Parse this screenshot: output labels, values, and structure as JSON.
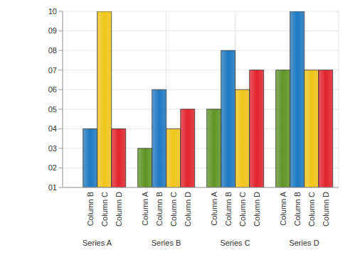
{
  "chart_data": {
    "type": "bar",
    "categories": [
      "Series A",
      "Series B",
      "Series C",
      "Series D"
    ],
    "series": [
      {
        "name": "Column A",
        "color": "#5f9426",
        "values": [
          1,
          3,
          5,
          7
        ]
      },
      {
        "name": "Column B",
        "color": "#1f78c1",
        "values": [
          4,
          6,
          8,
          10
        ]
      },
      {
        "name": "Column C",
        "color": "#f0c419",
        "values": [
          10,
          4,
          6,
          7
        ]
      },
      {
        "name": "Column D",
        "color": "#e2232c",
        "values": [
          4,
          5,
          7,
          7
        ]
      }
    ],
    "ylim": [
      1,
      10
    ],
    "yticks": [
      {
        "value": 1,
        "label": "01"
      },
      {
        "value": 2,
        "label": "02"
      },
      {
        "value": 3,
        "label": "03"
      },
      {
        "value": 4,
        "label": "04"
      },
      {
        "value": 5,
        "label": "05"
      },
      {
        "value": 6,
        "label": "06"
      },
      {
        "value": 7,
        "label": "07"
      },
      {
        "value": 8,
        "label": "08"
      },
      {
        "value": 9,
        "label": "09"
      },
      10
    ],
    "grid": true
  }
}
